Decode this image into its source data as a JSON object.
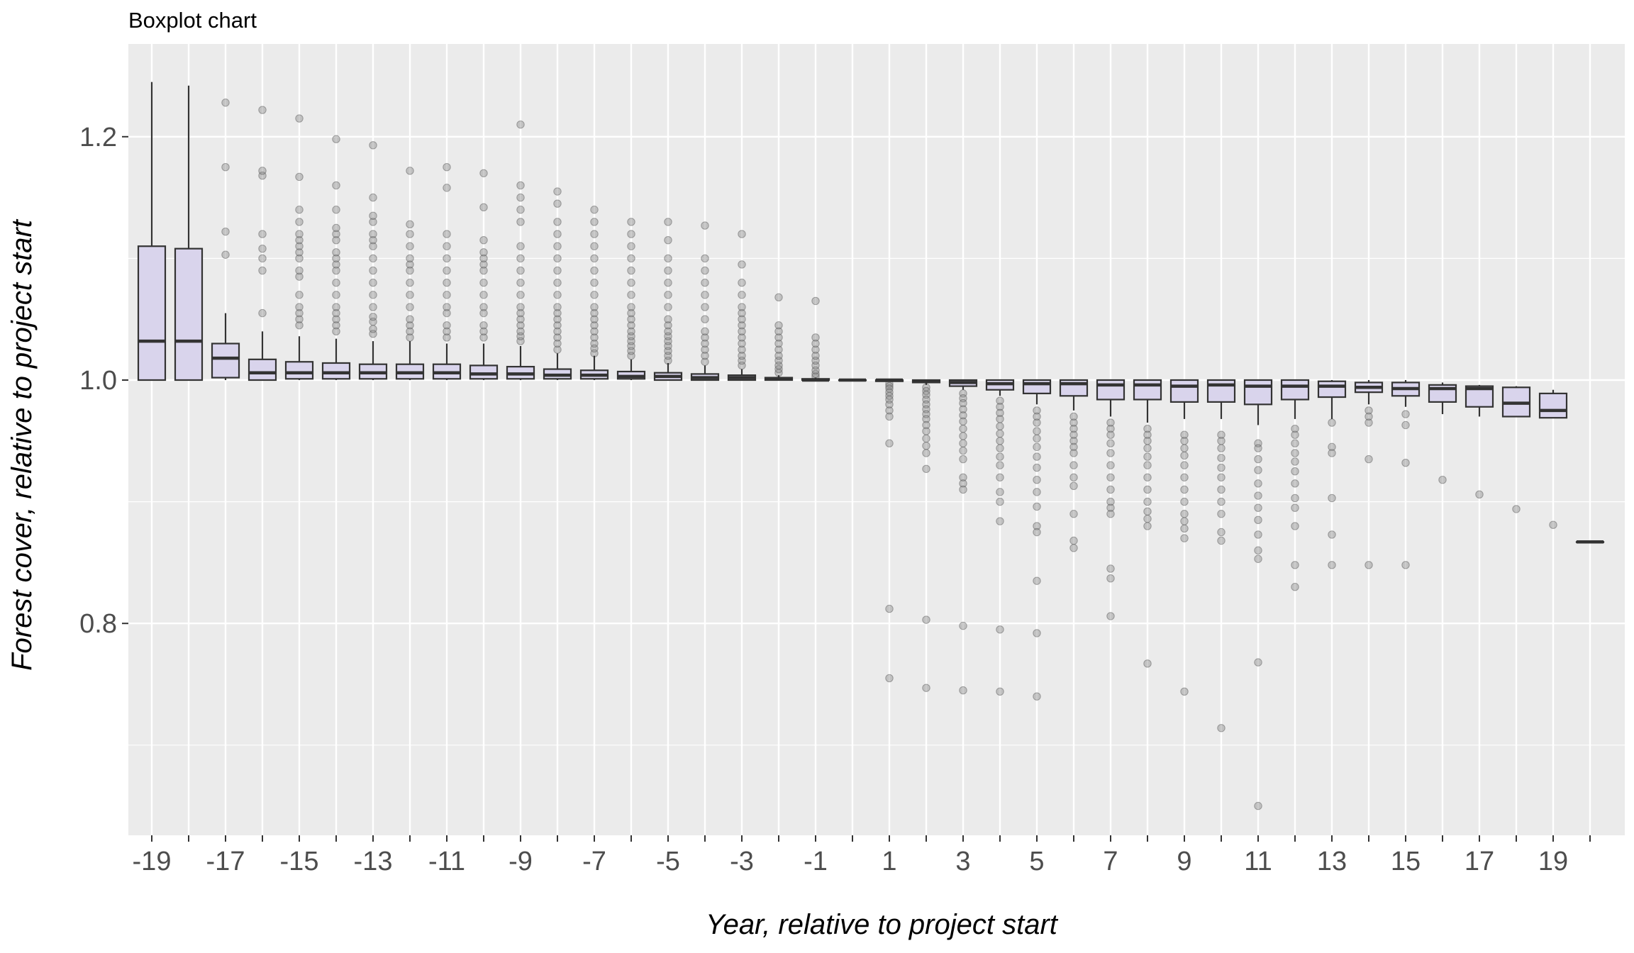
{
  "chart_data": {
    "type": "boxplot",
    "title": "Boxplot chart",
    "xlabel": "Year, relative to project start",
    "ylabel": "Forest cover, relative to project start",
    "ylim": [
      0.62,
      1.275
    ],
    "yticks": [
      0.8,
      1.0,
      1.2
    ],
    "ytick_labels": [
      "0.8",
      "1.0",
      "1.2"
    ],
    "xtick_labels": [
      "-19",
      "-17",
      "-15",
      "-13",
      "-11",
      "-9",
      "-7",
      "-5",
      "-3",
      "-1",
      "1",
      "3",
      "5",
      "7",
      "9",
      "11",
      "13",
      "15",
      "17",
      "19"
    ],
    "grid": true,
    "legend": "none",
    "colors": {
      "panel": "#ebebeb",
      "grid": "#ffffff",
      "box_fill": "#d9d4ec",
      "box_line": "#333333",
      "outlier": "#7f7f7f"
    },
    "categories": [
      "-19",
      "-18",
      "-17",
      "-16",
      "-15",
      "-14",
      "-13",
      "-12",
      "-11",
      "-10",
      "-9",
      "-8",
      "-7",
      "-6",
      "-5",
      "-4",
      "-3",
      "-2",
      "-1",
      "0",
      "1",
      "2",
      "3",
      "4",
      "5",
      "6",
      "7",
      "8",
      "9",
      "10",
      "11",
      "12",
      "13",
      "14",
      "15",
      "16",
      "17",
      "18",
      "19",
      "20"
    ],
    "boxes": [
      {
        "x": "-19",
        "min": 1.0,
        "q1": 1.0,
        "median": 1.032,
        "q3": 1.11,
        "max": 1.245,
        "outliers": []
      },
      {
        "x": "-18",
        "min": 1.0,
        "q1": 1.0,
        "median": 1.032,
        "q3": 1.108,
        "max": 1.242,
        "outliers": []
      },
      {
        "x": "-17",
        "min": 1.0,
        "q1": 1.002,
        "median": 1.018,
        "q3": 1.03,
        "max": 1.055,
        "outliers": [
          1.103,
          1.122,
          1.175,
          1.228
        ]
      },
      {
        "x": "-16",
        "min": 1.0,
        "q1": 1.0,
        "median": 1.006,
        "q3": 1.017,
        "max": 1.04,
        "outliers": [
          1.055,
          1.09,
          1.1,
          1.108,
          1.12,
          1.168,
          1.172,
          1.222
        ]
      },
      {
        "x": "-15",
        "min": 1.0,
        "q1": 1.001,
        "median": 1.006,
        "q3": 1.015,
        "max": 1.036,
        "outliers": [
          1.045,
          1.05,
          1.055,
          1.06,
          1.07,
          1.085,
          1.09,
          1.1,
          1.105,
          1.11,
          1.115,
          1.12,
          1.13,
          1.14,
          1.167,
          1.215
        ]
      },
      {
        "x": "-14",
        "min": 1.0,
        "q1": 1.001,
        "median": 1.006,
        "q3": 1.014,
        "max": 1.034,
        "outliers": [
          1.04,
          1.045,
          1.05,
          1.055,
          1.06,
          1.07,
          1.08,
          1.09,
          1.095,
          1.1,
          1.105,
          1.115,
          1.12,
          1.125,
          1.14,
          1.16,
          1.198
        ]
      },
      {
        "x": "-13",
        "min": 1.0,
        "q1": 1.001,
        "median": 1.006,
        "q3": 1.013,
        "max": 1.032,
        "outliers": [
          1.038,
          1.042,
          1.048,
          1.052,
          1.06,
          1.07,
          1.08,
          1.09,
          1.1,
          1.11,
          1.115,
          1.12,
          1.13,
          1.135,
          1.15,
          1.193
        ]
      },
      {
        "x": "-12",
        "min": 1.0,
        "q1": 1.001,
        "median": 1.006,
        "q3": 1.013,
        "max": 1.032,
        "outliers": [
          1.035,
          1.04,
          1.045,
          1.05,
          1.06,
          1.07,
          1.08,
          1.09,
          1.095,
          1.1,
          1.11,
          1.12,
          1.128,
          1.172
        ]
      },
      {
        "x": "-11",
        "min": 1.0,
        "q1": 1.001,
        "median": 1.006,
        "q3": 1.013,
        "max": 1.03,
        "outliers": [
          1.035,
          1.04,
          1.045,
          1.055,
          1.06,
          1.07,
          1.08,
          1.09,
          1.1,
          1.11,
          1.12,
          1.158,
          1.175
        ]
      },
      {
        "x": "-10",
        "min": 1.0,
        "q1": 1.001,
        "median": 1.005,
        "q3": 1.012,
        "max": 1.03,
        "outliers": [
          1.035,
          1.04,
          1.045,
          1.055,
          1.06,
          1.07,
          1.08,
          1.09,
          1.095,
          1.1,
          1.105,
          1.115,
          1.142,
          1.17
        ]
      },
      {
        "x": "-9",
        "min": 1.0,
        "q1": 1.001,
        "median": 1.005,
        "q3": 1.011,
        "max": 1.028,
        "outliers": [
          1.032,
          1.036,
          1.04,
          1.045,
          1.05,
          1.055,
          1.06,
          1.07,
          1.08,
          1.09,
          1.1,
          1.11,
          1.13,
          1.14,
          1.15,
          1.16,
          1.21
        ]
      },
      {
        "x": "-8",
        "min": 1.0,
        "q1": 1.001,
        "median": 1.004,
        "q3": 1.009,
        "max": 1.022,
        "outliers": [
          1.025,
          1.03,
          1.035,
          1.04,
          1.045,
          1.05,
          1.055,
          1.06,
          1.07,
          1.08,
          1.09,
          1.1,
          1.11,
          1.12,
          1.13,
          1.145,
          1.155
        ]
      },
      {
        "x": "-7",
        "min": 1.0,
        "q1": 1.001,
        "median": 1.004,
        "q3": 1.008,
        "max": 1.02,
        "outliers": [
          1.022,
          1.026,
          1.03,
          1.035,
          1.04,
          1.045,
          1.05,
          1.055,
          1.06,
          1.07,
          1.08,
          1.09,
          1.1,
          1.11,
          1.12,
          1.13,
          1.14
        ]
      },
      {
        "x": "-6",
        "min": 1.0,
        "q1": 1.001,
        "median": 1.003,
        "q3": 1.007,
        "max": 1.017,
        "outliers": [
          1.02,
          1.024,
          1.028,
          1.032,
          1.036,
          1.04,
          1.045,
          1.05,
          1.055,
          1.06,
          1.07,
          1.08,
          1.09,
          1.1,
          1.11,
          1.12,
          1.13
        ]
      },
      {
        "x": "-5",
        "min": 1.0,
        "q1": 1.0,
        "median": 1.003,
        "q3": 1.006,
        "max": 1.014,
        "outliers": [
          1.016,
          1.02,
          1.024,
          1.028,
          1.032,
          1.036,
          1.04,
          1.045,
          1.05,
          1.06,
          1.07,
          1.08,
          1.09,
          1.1,
          1.115,
          1.13
        ]
      },
      {
        "x": "-4",
        "min": 1.0,
        "q1": 1.0,
        "median": 1.002,
        "q3": 1.005,
        "max": 1.012,
        "outliers": [
          1.015,
          1.02,
          1.025,
          1.03,
          1.035,
          1.04,
          1.05,
          1.06,
          1.07,
          1.08,
          1.09,
          1.1,
          1.127
        ]
      },
      {
        "x": "-3",
        "min": 1.0,
        "q1": 1.0,
        "median": 1.002,
        "q3": 1.004,
        "max": 1.009,
        "outliers": [
          1.012,
          1.016,
          1.02,
          1.025,
          1.03,
          1.035,
          1.04,
          1.045,
          1.05,
          1.055,
          1.06,
          1.07,
          1.08,
          1.095,
          1.12
        ]
      },
      {
        "x": "-2",
        "min": 1.0,
        "q1": 1.0,
        "median": 1.001,
        "q3": 1.002,
        "max": 1.004,
        "outliers": [
          1.006,
          1.009,
          1.012,
          1.016,
          1.02,
          1.025,
          1.03,
          1.035,
          1.04,
          1.045,
          1.068
        ]
      },
      {
        "x": "-1",
        "min": 1.0,
        "q1": 1.0,
        "median": 1.0,
        "q3": 1.001,
        "max": 1.002,
        "outliers": [
          1.003,
          1.005,
          1.008,
          1.012,
          1.016,
          1.02,
          1.025,
          1.03,
          1.035,
          1.065
        ]
      },
      {
        "x": "0",
        "min": 1.0,
        "q1": 1.0,
        "median": 1.0,
        "q3": 1.0,
        "max": 1.0,
        "outliers": []
      },
      {
        "x": "1",
        "min": 0.999,
        "q1": 0.999,
        "median": 1.0,
        "q3": 1.0,
        "max": 1.0,
        "outliers": [
          0.997,
          0.995,
          0.993,
          0.99,
          0.987,
          0.984,
          0.98,
          0.975,
          0.97,
          0.948,
          0.812,
          0.755
        ]
      },
      {
        "x": "2",
        "min": 0.996,
        "q1": 0.998,
        "median": 0.999,
        "q3": 1.0,
        "max": 1.0,
        "outliers": [
          0.994,
          0.991,
          0.988,
          0.984,
          0.98,
          0.976,
          0.972,
          0.968,
          0.963,
          0.958,
          0.952,
          0.946,
          0.94,
          0.927,
          0.803,
          0.747
        ]
      },
      {
        "x": "3",
        "min": 0.992,
        "q1": 0.995,
        "median": 0.998,
        "q3": 1.0,
        "max": 1.0,
        "outliers": [
          0.989,
          0.985,
          0.981,
          0.976,
          0.971,
          0.966,
          0.96,
          0.954,
          0.948,
          0.942,
          0.935,
          0.92,
          0.915,
          0.91,
          0.798,
          0.745
        ]
      },
      {
        "x": "4",
        "min": 0.987,
        "q1": 0.992,
        "median": 0.997,
        "q3": 1.0,
        "max": 1.0,
        "outliers": [
          0.983,
          0.978,
          0.973,
          0.968,
          0.962,
          0.956,
          0.95,
          0.944,
          0.937,
          0.93,
          0.92,
          0.908,
          0.9,
          0.884,
          0.795,
          0.744
        ]
      },
      {
        "x": "5",
        "min": 0.98,
        "q1": 0.989,
        "median": 0.997,
        "q3": 1.0,
        "max": 1.0,
        "outliers": [
          0.975,
          0.97,
          0.965,
          0.958,
          0.952,
          0.945,
          0.937,
          0.928,
          0.918,
          0.908,
          0.896,
          0.88,
          0.875,
          0.835,
          0.792,
          0.74
        ]
      },
      {
        "x": "6",
        "min": 0.975,
        "q1": 0.987,
        "median": 0.997,
        "q3": 1.0,
        "max": 1.0,
        "outliers": [
          0.97,
          0.965,
          0.96,
          0.955,
          0.95,
          0.945,
          0.94,
          0.93,
          0.92,
          0.913,
          0.89,
          0.868,
          0.862
        ]
      },
      {
        "x": "7",
        "min": 0.97,
        "q1": 0.984,
        "median": 0.996,
        "q3": 1.0,
        "max": 1.0,
        "outliers": [
          0.965,
          0.96,
          0.955,
          0.948,
          0.94,
          0.93,
          0.92,
          0.91,
          0.9,
          0.895,
          0.89,
          0.845,
          0.837,
          0.806
        ]
      },
      {
        "x": "8",
        "min": 0.965,
        "q1": 0.984,
        "median": 0.996,
        "q3": 1.0,
        "max": 1.0,
        "outliers": [
          0.96,
          0.955,
          0.95,
          0.944,
          0.937,
          0.93,
          0.92,
          0.91,
          0.9,
          0.892,
          0.886,
          0.88,
          0.767
        ]
      },
      {
        "x": "9",
        "min": 0.968,
        "q1": 0.982,
        "median": 0.995,
        "q3": 1.0,
        "max": 1.0,
        "outliers": [
          0.955,
          0.95,
          0.944,
          0.938,
          0.93,
          0.92,
          0.91,
          0.9,
          0.89,
          0.884,
          0.878,
          0.87,
          0.744
        ]
      },
      {
        "x": "10",
        "min": 0.968,
        "q1": 0.982,
        "median": 0.996,
        "q3": 1.0,
        "max": 1.0,
        "outliers": [
          0.955,
          0.95,
          0.944,
          0.936,
          0.928,
          0.92,
          0.91,
          0.9,
          0.89,
          0.875,
          0.868,
          0.714
        ]
      },
      {
        "x": "11",
        "min": 0.963,
        "q1": 0.98,
        "median": 0.995,
        "q3": 1.0,
        "max": 1.0,
        "outliers": [
          0.948,
          0.944,
          0.935,
          0.926,
          0.915,
          0.905,
          0.895,
          0.885,
          0.873,
          0.86,
          0.853,
          0.768,
          0.65
        ]
      },
      {
        "x": "12",
        "min": 0.968,
        "q1": 0.984,
        "median": 0.995,
        "q3": 1.0,
        "max": 1.0,
        "outliers": [
          0.96,
          0.955,
          0.948,
          0.94,
          0.933,
          0.925,
          0.915,
          0.903,
          0.895,
          0.88,
          0.848,
          0.83
        ]
      },
      {
        "x": "13",
        "min": 0.968,
        "q1": 0.986,
        "median": 0.995,
        "q3": 0.999,
        "max": 1.0,
        "outliers": [
          0.965,
          0.945,
          0.94,
          0.903,
          0.873,
          0.848
        ]
      },
      {
        "x": "14",
        "min": 0.98,
        "q1": 0.99,
        "median": 0.994,
        "q3": 0.998,
        "max": 1.0,
        "outliers": [
          0.975,
          0.97,
          0.965,
          0.935,
          0.848
        ]
      },
      {
        "x": "15",
        "min": 0.978,
        "q1": 0.987,
        "median": 0.993,
        "q3": 0.998,
        "max": 1.0,
        "outliers": [
          0.972,
          0.963,
          0.932,
          0.848
        ]
      },
      {
        "x": "16",
        "min": 0.972,
        "q1": 0.982,
        "median": 0.993,
        "q3": 0.996,
        "max": 0.998,
        "outliers": [
          0.918
        ]
      },
      {
        "x": "17",
        "min": 0.97,
        "q1": 0.978,
        "median": 0.993,
        "q3": 0.995,
        "max": 0.996,
        "outliers": [
          0.906
        ]
      },
      {
        "x": "18",
        "min": 0.97,
        "q1": 0.97,
        "median": 0.981,
        "q3": 0.994,
        "max": 0.995,
        "outliers": [
          0.894
        ]
      },
      {
        "x": "19",
        "min": 0.969,
        "q1": 0.969,
        "median": 0.975,
        "q3": 0.989,
        "max": 0.992,
        "outliers": [
          0.881
        ]
      },
      {
        "x": "20",
        "min": 0.867,
        "q1": 0.867,
        "median": 0.867,
        "q3": 0.867,
        "max": 0.867,
        "outliers": []
      }
    ]
  }
}
